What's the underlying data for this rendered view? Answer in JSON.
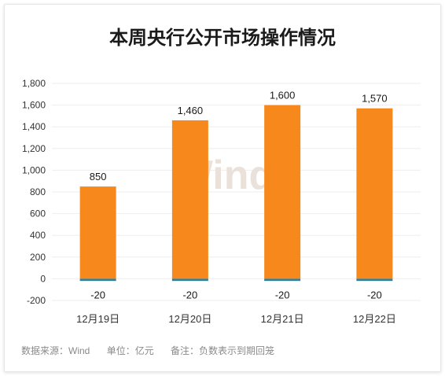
{
  "chart_data": {
    "type": "bar",
    "title": "本周央行公开市场操作情况",
    "categories": [
      "12月19日",
      "12月20日",
      "12月21日",
      "12月22日"
    ],
    "series": [
      {
        "values": [
          850,
          1460,
          1600,
          1570
        ],
        "color": "#f7891c"
      },
      {
        "values": [
          -20,
          -20,
          -20,
          -20
        ],
        "color": "#2f7f9e"
      }
    ],
    "data_labels_positive": [
      "850",
      "1,460",
      "1,600",
      "1,570"
    ],
    "data_labels_negative": [
      "-20",
      "-20",
      "-20",
      "-20"
    ],
    "yticks": [
      "1,800",
      "1,600",
      "1,400",
      "1,200",
      "1,000",
      "800",
      "600",
      "400",
      "200",
      "0",
      "-200"
    ],
    "ylim": [
      -200,
      1800
    ],
    "grid": true,
    "watermark": "Wind"
  },
  "footer": {
    "source": "数据来源：Wind",
    "unit": "单位：亿元",
    "note": "备注：负数表示到期回笼"
  }
}
